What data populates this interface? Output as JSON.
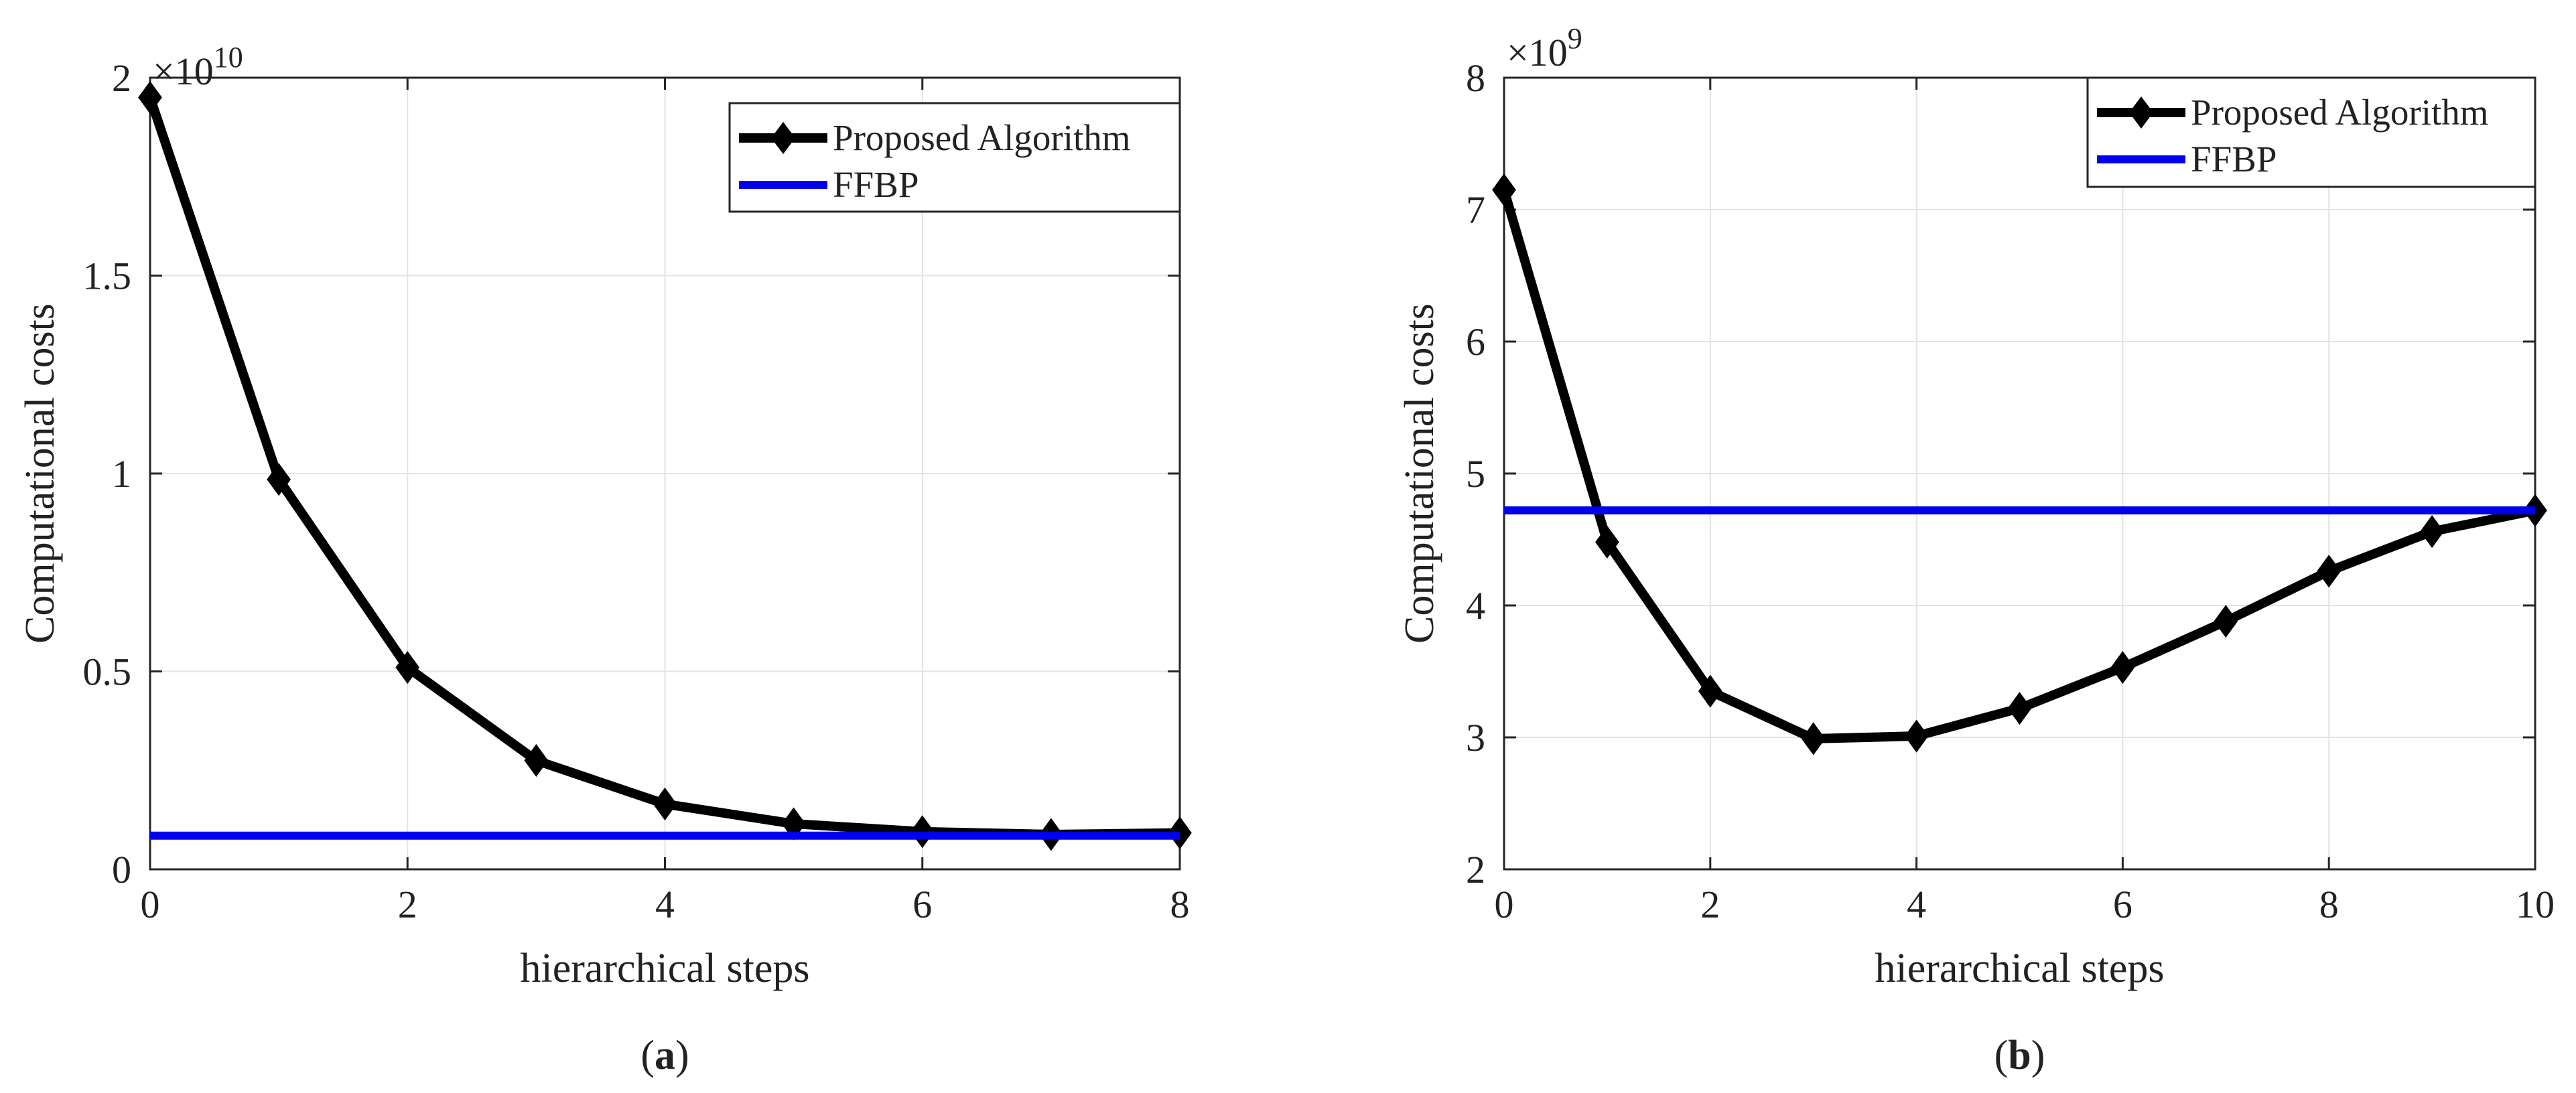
{
  "chart_data": [
    {
      "type": "line",
      "caption_letter": "a",
      "xlabel": "hierarchical steps",
      "ylabel": "Computational costs",
      "y_exponent_base": "×10",
      "y_exponent_power": "10",
      "xlim": [
        0,
        8
      ],
      "ylim": [
        0,
        2
      ],
      "xticks": [
        0,
        2,
        4,
        6,
        8
      ],
      "xtick_labels": [
        "0",
        "2",
        "4",
        "6",
        "8"
      ],
      "yticks": [
        0,
        0.5,
        1,
        1.5,
        2
      ],
      "ytick_labels": [
        "0",
        "0.5",
        "1",
        "1.5",
        "2"
      ],
      "grid": true,
      "legend_position": "top-right",
      "series": [
        {
          "name": "Proposed Algorithm",
          "color": "#000000",
          "marker": "diamond",
          "x": [
            0,
            1,
            2,
            3,
            4,
            5,
            6,
            7,
            8
          ],
          "values": [
            1.95,
            0.985,
            0.51,
            0.275,
            0.165,
            0.115,
            0.095,
            0.088,
            0.092
          ]
        },
        {
          "name": "FFBP",
          "color": "#0000ee",
          "marker": "none",
          "x": [
            0,
            8
          ],
          "values": [
            0.085,
            0.085
          ]
        }
      ]
    },
    {
      "type": "line",
      "caption_letter": "b",
      "xlabel": "hierarchical steps",
      "ylabel": "Computational costs",
      "y_exponent_base": "×10",
      "y_exponent_power": "9",
      "xlim": [
        0,
        10
      ],
      "ylim": [
        2,
        8
      ],
      "xticks": [
        0,
        2,
        4,
        6,
        8,
        10
      ],
      "xtick_labels": [
        "0",
        "2",
        "4",
        "6",
        "8",
        "10"
      ],
      "yticks": [
        2,
        3,
        4,
        5,
        6,
        7,
        8
      ],
      "ytick_labels": [
        "2",
        "3",
        "4",
        "5",
        "6",
        "7",
        "8"
      ],
      "grid": true,
      "legend_position": "top-right",
      "series": [
        {
          "name": "Proposed Algorithm",
          "color": "#000000",
          "marker": "diamond",
          "x": [
            0,
            1,
            2,
            3,
            4,
            5,
            6,
            7,
            8,
            9,
            10
          ],
          "values": [
            7.15,
            4.48,
            3.35,
            2.99,
            3.01,
            3.22,
            3.53,
            3.88,
            4.26,
            4.56,
            4.72
          ]
        },
        {
          "name": "FFBP",
          "color": "#0000ee",
          "marker": "none",
          "x": [
            0,
            10
          ],
          "values": [
            4.72,
            4.72
          ]
        }
      ]
    }
  ]
}
